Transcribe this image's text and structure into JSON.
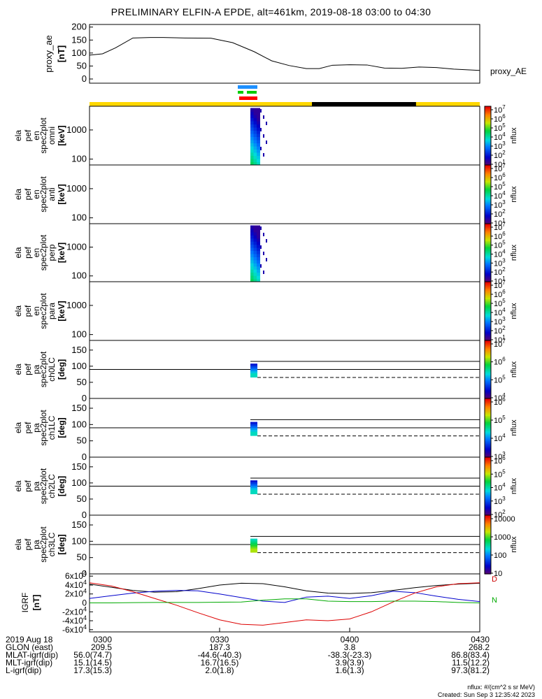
{
  "title": "PRELIMINARY ELFIN-A EPDE, alt=461km, 2019-08-18 03:00 to 04:30",
  "chart_data": [
    {
      "type": "line",
      "panel": "proxy_ae",
      "ylabel": [
        "proxy_ae",
        "[nT]"
      ],
      "right_label": "proxy_AE",
      "yticks": [
        "0",
        "50",
        "100",
        "150",
        "200"
      ],
      "ylim": [
        0,
        210
      ],
      "x_minutes": [
        0,
        3,
        6,
        10,
        14,
        17,
        22,
        28,
        33,
        38,
        42,
        46,
        50,
        53,
        56,
        60,
        64,
        68,
        72,
        76,
        80,
        84,
        90
      ],
      "values": [
        92,
        97,
        120,
        158,
        160,
        160,
        158,
        157,
        140,
        105,
        70,
        52,
        40,
        40,
        53,
        55,
        54,
        42,
        41,
        46,
        44,
        38,
        33
      ]
    },
    {
      "type": "heatmap",
      "panel": "omni",
      "ylabel": [
        "ela",
        "pef",
        "en",
        "spec2plot",
        "omni",
        "[keV]"
      ],
      "yticks": [
        "100",
        "1000"
      ],
      "ylog": true,
      "ylim": [
        63,
        6500
      ],
      "colorbar_ticks": [
        "10^1",
        "10^2",
        "10^3",
        "10^4",
        "10^5",
        "10^6",
        "10^7"
      ],
      "colorbar_label": "nflux"
    },
    {
      "type": "heatmap",
      "panel": "anti",
      "ylabel": [
        "ela",
        "pef",
        "en",
        "spec2plot",
        "anti",
        "[keV]"
      ],
      "yticks": [
        "100",
        "1000"
      ],
      "ylog": true,
      "ylim": [
        63,
        6500
      ],
      "colorbar_ticks": [
        "10^1",
        "10^2",
        "10^3",
        "10^4",
        "10^5",
        "10^6",
        "10^7"
      ],
      "colorbar_label": "nflux"
    },
    {
      "type": "heatmap",
      "panel": "perp",
      "ylabel": [
        "ela",
        "pef",
        "en",
        "spec2plot",
        "perp",
        "[keV]"
      ],
      "yticks": [
        "100",
        "1000"
      ],
      "ylog": true,
      "ylim": [
        63,
        6500
      ],
      "colorbar_ticks": [
        "10^1",
        "10^2",
        "10^3",
        "10^4",
        "10^5",
        "10^6",
        "10^7"
      ],
      "colorbar_label": "nflux"
    },
    {
      "type": "heatmap",
      "panel": "para",
      "ylabel": [
        "ela",
        "pef",
        "en",
        "spec2plot",
        "para",
        "[keV]"
      ],
      "yticks": [
        "100",
        "1000"
      ],
      "ylog": true,
      "ylim": [
        63,
        6500
      ],
      "colorbar_ticks": [
        "10^1",
        "10^2",
        "10^3",
        "10^4",
        "10^5",
        "10^6",
        "10^7"
      ],
      "colorbar_label": "nflux"
    },
    {
      "type": "heatmap",
      "panel": "ch0LC",
      "ylabel": [
        "ela",
        "pef",
        "pa",
        "spec2plot",
        "ch0LC",
        "[deg]"
      ],
      "yticks": [
        "0",
        "50",
        "100",
        "150"
      ],
      "ylim": [
        0,
        180
      ],
      "colorbar_ticks": [
        "10^4",
        "10^5",
        "10^6",
        "10^7"
      ],
      "colorbar_label": "nflux"
    },
    {
      "type": "heatmap",
      "panel": "ch1LC",
      "ylabel": [
        "ela",
        "pef",
        "pa",
        "spec2plot",
        "ch1LC",
        "[deg]"
      ],
      "yticks": [
        "0",
        "50",
        "100",
        "150"
      ],
      "ylim": [
        0,
        180
      ],
      "colorbar_ticks": [
        "10^3",
        "10^4",
        "10^5",
        "10^6"
      ],
      "colorbar_label": "nflux"
    },
    {
      "type": "heatmap",
      "panel": "ch2LC",
      "ylabel": [
        "ela",
        "pef",
        "pa",
        "spec2plot",
        "ch2LC",
        "[deg]"
      ],
      "yticks": [
        "0",
        "50",
        "100",
        "150"
      ],
      "ylim": [
        0,
        180
      ],
      "colorbar_ticks": [
        "10^2",
        "10^3",
        "10^4",
        "10^5",
        "10^6"
      ],
      "colorbar_label": "nflux"
    },
    {
      "type": "heatmap",
      "panel": "ch3LC",
      "ylabel": [
        "ela",
        "pef",
        "pa",
        "spec2plot",
        "ch3LC",
        "[deg]"
      ],
      "yticks": [
        "0",
        "50",
        "100",
        "150"
      ],
      "ylim": [
        0,
        180
      ],
      "colorbar_ticks": [
        "10",
        "100",
        "1000",
        "10000"
      ],
      "colorbar_label": "nflux"
    },
    {
      "type": "line",
      "panel": "IGRF",
      "ylabel": [
        "IGRF",
        "[nT]"
      ],
      "yticks": [
        "-6x10^4",
        "-4x10^4",
        "-2x10^4",
        "0",
        "2x10^4",
        "4x10^4",
        "6x10^4"
      ],
      "ylim": [
        -65000,
        65000
      ],
      "right_labels": [
        "D",
        "N"
      ],
      "x_minutes": [
        0,
        5,
        10,
        15,
        20,
        25,
        30,
        35,
        40,
        45,
        50,
        55,
        60,
        65,
        70,
        75,
        80,
        85,
        90
      ],
      "series": [
        {
          "color": "#000000",
          "values": [
            42000,
            35000,
            28000,
            24000,
            25000,
            32000,
            40000,
            44000,
            43000,
            36000,
            27000,
            22000,
            21000,
            23000,
            28000,
            34000,
            39000,
            42000,
            44000
          ]
        },
        {
          "color": "#0000cc",
          "values": [
            10000,
            16000,
            22000,
            26000,
            28000,
            27000,
            20000,
            12000,
            4000,
            1000,
            13000,
            15000,
            10000,
            16000,
            26000,
            23000,
            15000,
            8000,
            3000
          ]
        },
        {
          "color": "#dd0000",
          "values": [
            45000,
            38000,
            25000,
            10000,
            -5000,
            -22000,
            -38000,
            -48000,
            -50000,
            -44000,
            -38000,
            -40000,
            -36000,
            -20000,
            2000,
            22000,
            36000,
            43000,
            45000
          ]
        },
        {
          "color": "#00aa00",
          "values": [
            0,
            0,
            500,
            1000,
            1000,
            1000,
            1500,
            2000,
            6000,
            9000,
            9000,
            4000,
            3000,
            3000,
            4000,
            4000,
            3000,
            1000,
            0
          ]
        }
      ]
    }
  ],
  "time_axis": {
    "row_labels": [
      "2019 Aug 18",
      "GLON (east)",
      "MLAT-igrf(dip)",
      "MLT-igrf(dip)",
      "L-igrf(dip)"
    ],
    "columns": [
      {
        "x_minutes": 0,
        "values": [
          "0300",
          "209.5",
          "56.0(74.7)",
          "15.1(14.5)",
          "17.3(15.3)"
        ]
      },
      {
        "x_minutes": 30,
        "values": [
          "0330",
          "187.3",
          "-44.6(-40.3)",
          "16.7(16.5)",
          "2.0(1.8)"
        ]
      },
      {
        "x_minutes": 60,
        "values": [
          "0400",
          "3.8",
          "-38.3(-23.3)",
          "3.9(3.9)",
          "1.6(1.3)"
        ]
      },
      {
        "x_minutes": 90,
        "values": [
          "0430",
          "268.2",
          "86.8(83.4)",
          "11.5(12.2)",
          "97.3(81.2)"
        ]
      }
    ]
  },
  "footer": {
    "units": "nflux: #/(cm^2 s sr MeV)",
    "created": "Created: Sun Sep  3 12:35:42 2023"
  },
  "colors": {
    "sunlight_bar": "#ffd700",
    "eclipse_bar": "#000000",
    "science_bar_1": "#1e90ff",
    "science_bar_2": "#00cc00",
    "science_bar_3": "#ff0000"
  }
}
